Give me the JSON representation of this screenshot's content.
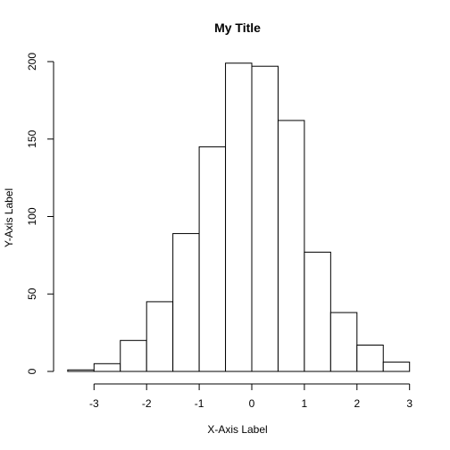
{
  "chart_data": {
    "type": "bar",
    "title": "My Title",
    "xlabel": "X-Axis Label",
    "ylabel": "Y-Axis Label",
    "bins": [
      {
        "x0": -3.5,
        "x1": -3.0,
        "count": 1
      },
      {
        "x0": -3.0,
        "x1": -2.5,
        "count": 5
      },
      {
        "x0": -2.5,
        "x1": -2.0,
        "count": 20
      },
      {
        "x0": -2.0,
        "x1": -1.5,
        "count": 45
      },
      {
        "x0": -1.5,
        "x1": -1.0,
        "count": 89
      },
      {
        "x0": -1.0,
        "x1": -0.5,
        "count": 145
      },
      {
        "x0": -0.5,
        "x1": 0.0,
        "count": 199
      },
      {
        "x0": 0.0,
        "x1": 0.5,
        "count": 197
      },
      {
        "x0": 0.5,
        "x1": 1.0,
        "count": 162
      },
      {
        "x0": 1.0,
        "x1": 1.5,
        "count": 77
      },
      {
        "x0": 1.5,
        "x1": 2.0,
        "count": 38
      },
      {
        "x0": 2.0,
        "x1": 2.5,
        "count": 17
      },
      {
        "x0": 2.5,
        "x1": 3.0,
        "count": 6
      }
    ],
    "xlim": [
      -3.5,
      3.0
    ],
    "ylim": [
      0,
      200
    ],
    "x_ticks": [
      -3,
      -2,
      -1,
      0,
      1,
      2,
      3
    ],
    "x_tick_labels": [
      "-3",
      "-2",
      "-1",
      "0",
      "1",
      "2",
      "3"
    ],
    "y_ticks": [
      0,
      50,
      100,
      150,
      200
    ],
    "y_tick_labels": [
      "0",
      "50",
      "100",
      "150",
      "200"
    ],
    "grid": false,
    "bar_fill": "#ffffff",
    "bar_stroke": "#000000"
  }
}
